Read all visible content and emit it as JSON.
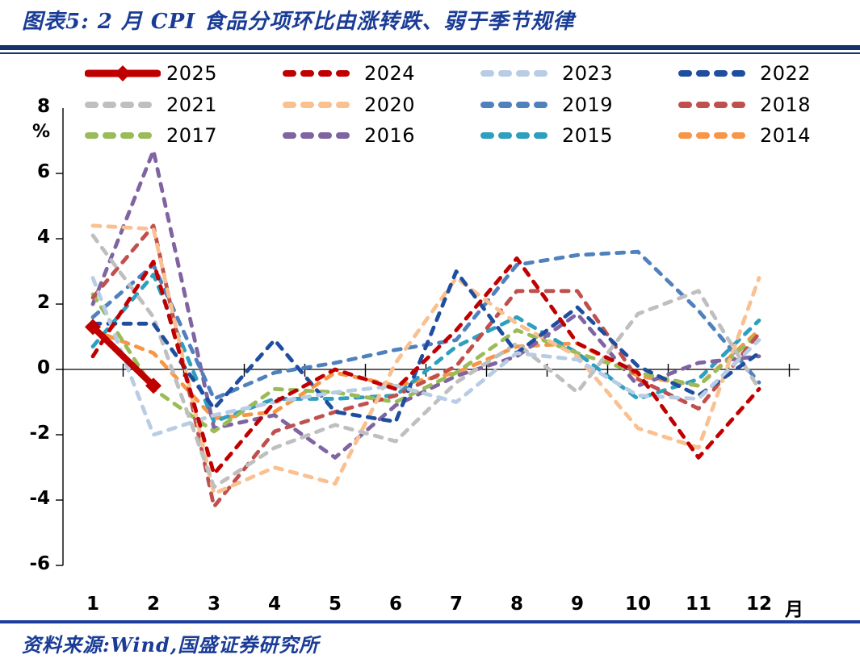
{
  "header": {
    "title": "图表5: 2 月 CPI 食品分项环比由涨转跌、弱于季节规律"
  },
  "footer": {
    "source": "资料来源:Wind,国盛证券研究所"
  },
  "accent_colors": {
    "navy_rule": "#14336B",
    "royal_rule": "#1C3F9E",
    "title_blue": "#1A3C96"
  },
  "chart_data": {
    "type": "line",
    "title": "图表5: 2 月 CPI 食品分项环比由涨转跌、弱于季节规律",
    "xlabel": "月",
    "ylabel": "%",
    "x": [
      1,
      2,
      3,
      4,
      5,
      6,
      7,
      8,
      9,
      10,
      11,
      12
    ],
    "x_labels": [
      "1",
      "2",
      "3",
      "4",
      "5",
      "6",
      "7",
      "8",
      "9",
      "10",
      "11",
      "12"
    ],
    "yticks": [
      8,
      6,
      4,
      2,
      0,
      -2,
      -4,
      -6
    ],
    "ylim": [
      -6,
      8
    ],
    "grid": false,
    "legend_position": "top",
    "series": [
      {
        "name": "2025",
        "color": "#C00000",
        "dash": false,
        "marker": "diamond",
        "width": 8,
        "values": [
          1.3,
          -0.5,
          null,
          null,
          null,
          null,
          null,
          null,
          null,
          null,
          null,
          null
        ]
      },
      {
        "name": "2024",
        "color": "#C00000",
        "dash": true,
        "values": [
          0.4,
          3.3,
          -3.2,
          -1.0,
          0.0,
          -0.6,
          1.2,
          3.4,
          0.8,
          -0.1,
          -2.7,
          -0.6
        ]
      },
      {
        "name": "2023",
        "color": "#B8CCE4",
        "dash": true,
        "values": [
          2.8,
          -2.0,
          -1.4,
          -1.0,
          -0.7,
          -0.5,
          -1.0,
          0.5,
          0.3,
          -0.8,
          -0.9,
          0.9
        ]
      },
      {
        "name": "2022",
        "color": "#1F4E9F",
        "dash": true,
        "values": [
          1.4,
          1.4,
          -1.2,
          0.9,
          -1.3,
          -1.6,
          3.0,
          0.5,
          1.9,
          0.1,
          -0.8,
          0.5
        ]
      },
      {
        "name": "2021",
        "color": "#BFBFBF",
        "dash": true,
        "values": [
          4.1,
          1.6,
          -3.6,
          -2.4,
          -1.7,
          -2.2,
          -0.4,
          0.8,
          -0.7,
          1.7,
          2.4,
          -0.6
        ]
      },
      {
        "name": "2020",
        "color": "#FAC090",
        "dash": true,
        "values": [
          4.4,
          4.3,
          -3.8,
          -3.0,
          -3.5,
          0.2,
          2.8,
          1.4,
          0.4,
          -1.8,
          -2.4,
          2.8
        ]
      },
      {
        "name": "2019",
        "color": "#4F81BD",
        "dash": true,
        "values": [
          1.6,
          3.2,
          -0.9,
          -0.1,
          0.2,
          0.6,
          0.9,
          3.2,
          3.5,
          3.6,
          1.8,
          -0.4
        ]
      },
      {
        "name": "2018",
        "color": "#C0504D",
        "dash": true,
        "values": [
          2.2,
          4.4,
          -4.2,
          -1.9,
          -1.3,
          -0.8,
          0.1,
          2.4,
          2.4,
          -0.3,
          -1.2,
          1.1
        ]
      },
      {
        "name": "2017",
        "color": "#9BBB59",
        "dash": true,
        "values": [
          2.3,
          -0.6,
          -1.9,
          -0.6,
          -0.7,
          -1.0,
          -0.1,
          1.2,
          0.5,
          -0.1,
          -0.5,
          1.1
        ]
      },
      {
        "name": "2016",
        "color": "#8064A2",
        "dash": true,
        "values": [
          2.0,
          6.7,
          -1.8,
          -1.4,
          -2.7,
          -1.1,
          -0.2,
          0.4,
          1.7,
          -0.5,
          0.2,
          0.4
        ]
      },
      {
        "name": "2015",
        "color": "#2E9FBE",
        "dash": true,
        "values": [
          0.7,
          2.9,
          -1.6,
          -0.9,
          -0.9,
          -0.8,
          0.7,
          1.6,
          0.5,
          -0.9,
          -0.3,
          1.5
        ]
      },
      {
        "name": "2014",
        "color": "#F79646",
        "dash": true,
        "values": [
          1.2,
          0.5,
          -1.5,
          -1.3,
          -0.1,
          -0.5,
          -0.1,
          0.7,
          0.8,
          -0.2,
          -0.5,
          1.2
        ]
      }
    ]
  }
}
